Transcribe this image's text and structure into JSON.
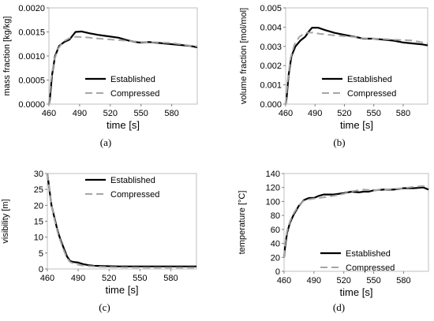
{
  "chart_data": [
    {
      "id": "a",
      "type": "line",
      "panel_label": "(a)",
      "xlabel": "time [s]",
      "ylabel": "mass fraction [kg/kg]",
      "xlim": [
        460,
        605
      ],
      "ylim": [
        0,
        0.002
      ],
      "xticks": [
        "460",
        "490",
        "520",
        "550",
        "580"
      ],
      "yticks": [
        "0.0000",
        "0.0005",
        "0.0010",
        "0.0015",
        "0.0020"
      ],
      "legend_position": "bottom-right",
      "series": [
        {
          "name": "Established",
          "color": "#000000",
          "dash": "solid",
          "points": [
            [
              460,
              0
            ],
            [
              461,
              0.00012
            ],
            [
              463,
              0.0006
            ],
            [
              466,
              0.001
            ],
            [
              470,
              0.00121
            ],
            [
              475,
              0.00129
            ],
            [
              480,
              0.00134
            ],
            [
              483,
              0.00142
            ],
            [
              486,
              0.0015
            ],
            [
              492,
              0.00151
            ],
            [
              500,
              0.00147
            ],
            [
              508,
              0.00144
            ],
            [
              518,
              0.00141
            ],
            [
              528,
              0.00138
            ],
            [
              538,
              0.00132
            ],
            [
              548,
              0.00128
            ],
            [
              558,
              0.00129
            ],
            [
              568,
              0.00127
            ],
            [
              578,
              0.00125
            ],
            [
              588,
              0.00123
            ],
            [
              598,
              0.00121
            ],
            [
              605,
              0.00118
            ]
          ]
        },
        {
          "name": "Compressed",
          "color": "#a6a6a6",
          "dash": "dashed",
          "points": [
            [
              460,
              0
            ],
            [
              462,
              0.0005
            ],
            [
              465,
              0.0009
            ],
            [
              469,
              0.00115
            ],
            [
              474,
              0.0013
            ],
            [
              480,
              0.00137
            ],
            [
              486,
              0.0014
            ],
            [
              495,
              0.00139
            ],
            [
              505,
              0.00137
            ],
            [
              515,
              0.00135
            ],
            [
              528,
              0.00133
            ],
            [
              540,
              0.00131
            ],
            [
              550,
              0.00129
            ],
            [
              560,
              0.00129
            ],
            [
              570,
              0.00128
            ],
            [
              580,
              0.00127
            ],
            [
              590,
              0.00124
            ],
            [
              600,
              0.00121
            ],
            [
              605,
              0.0012
            ]
          ]
        }
      ]
    },
    {
      "id": "b",
      "type": "line",
      "panel_label": "(b)",
      "xlabel": "time [s]",
      "ylabel": "volume fraction [mol/mol]",
      "xlim": [
        460,
        605
      ],
      "ylim": [
        0,
        0.005
      ],
      "xticks": [
        "460",
        "490",
        "520",
        "550",
        "580"
      ],
      "yticks": [
        "0.000",
        "0.001",
        "0.002",
        "0.003",
        "0.004",
        "0.005"
      ],
      "legend_position": "bottom-right",
      "series": [
        {
          "name": "Established",
          "color": "#000000",
          "dash": "solid",
          "points": [
            [
              460,
              0
            ],
            [
              461,
              0.0003
            ],
            [
              463,
              0.0015
            ],
            [
              466,
              0.0025
            ],
            [
              470,
              0.003
            ],
            [
              475,
              0.0033
            ],
            [
              480,
              0.0035
            ],
            [
              484,
              0.0038
            ],
            [
              487,
              0.00397
            ],
            [
              493,
              0.00397
            ],
            [
              500,
              0.00385
            ],
            [
              510,
              0.0037
            ],
            [
              520,
              0.0036
            ],
            [
              530,
              0.0035
            ],
            [
              540,
              0.0034
            ],
            [
              550,
              0.0034
            ],
            [
              560,
              0.00335
            ],
            [
              570,
              0.0033
            ],
            [
              580,
              0.0032
            ],
            [
              590,
              0.00315
            ],
            [
              600,
              0.0031
            ],
            [
              605,
              0.00305
            ]
          ]
        },
        {
          "name": "Compressed",
          "color": "#a6a6a6",
          "dash": "dashed",
          "points": [
            [
              460,
              0
            ],
            [
              462,
              0.0012
            ],
            [
              465,
              0.0024
            ],
            [
              469,
              0.0031
            ],
            [
              474,
              0.0035
            ],
            [
              480,
              0.0037
            ],
            [
              487,
              0.00372
            ],
            [
              495,
              0.00365
            ],
            [
              505,
              0.0036
            ],
            [
              515,
              0.00355
            ],
            [
              528,
              0.0035
            ],
            [
              540,
              0.00342
            ],
            [
              550,
              0.0034
            ],
            [
              560,
              0.00338
            ],
            [
              570,
              0.00335
            ],
            [
              580,
              0.00333
            ],
            [
              590,
              0.0033
            ],
            [
              600,
              0.0032
            ],
            [
              605,
              0.00315
            ]
          ]
        }
      ]
    },
    {
      "id": "c",
      "type": "line",
      "panel_label": "(c)",
      "xlabel": "time [s]",
      "ylabel": "visibility [m]",
      "xlim": [
        460,
        605
      ],
      "ylim": [
        0,
        30
      ],
      "xticks": [
        "460",
        "490",
        "520",
        "550",
        "580"
      ],
      "yticks": [
        "0",
        "5",
        "10",
        "15",
        "20",
        "25",
        "30"
      ],
      "legend_position": "top-right",
      "series": [
        {
          "name": "Established",
          "color": "#000000",
          "dash": "solid",
          "points": [
            [
              460,
              30
            ],
            [
              462,
              25
            ],
            [
              464,
              20
            ],
            [
              467,
              16
            ],
            [
              470,
              12
            ],
            [
              473,
              9
            ],
            [
              476,
              6.5
            ],
            [
              479,
              4
            ],
            [
              482,
              2.5
            ],
            [
              485,
              2.2
            ],
            [
              490,
              2
            ],
            [
              495,
              1.5
            ],
            [
              500,
              1.2
            ],
            [
              505,
              1
            ],
            [
              515,
              0.9
            ],
            [
              530,
              0.8
            ],
            [
              560,
              0.8
            ],
            [
              590,
              0.8
            ],
            [
              605,
              0.8
            ]
          ]
        },
        {
          "name": "Compressed",
          "color": "#a6a6a6",
          "dash": "dashed",
          "points": [
            [
              460,
              30
            ],
            [
              462,
              25
            ],
            [
              464,
              20
            ],
            [
              467,
              15.5
            ],
            [
              470,
              11.5
            ],
            [
              473,
              8.5
            ],
            [
              476,
              5.8
            ],
            [
              479,
              3.5
            ],
            [
              482,
              2.2
            ],
            [
              486,
              1.6
            ],
            [
              492,
              1.2
            ],
            [
              500,
              0.9
            ],
            [
              510,
              0.7
            ],
            [
              530,
              0.5
            ],
            [
              560,
              0.4
            ],
            [
              590,
              0.4
            ],
            [
              605,
              0.4
            ]
          ]
        }
      ]
    },
    {
      "id": "d",
      "type": "line",
      "panel_label": "(d)",
      "xlabel": "time [s]",
      "ylabel": "temperature [°C]",
      "xlim": [
        460,
        605
      ],
      "ylim": [
        0,
        140
      ],
      "xticks": [
        "460",
        "490",
        "520",
        "550",
        "580"
      ],
      "yticks": [
        "0",
        "20",
        "40",
        "60",
        "80",
        "100",
        "120",
        "140"
      ],
      "legend_position": "bottom-right",
      "series": [
        {
          "name": "Established",
          "color": "#000000",
          "dash": "solid",
          "points": [
            [
              460,
              20
            ],
            [
              461,
              35
            ],
            [
              463,
              55
            ],
            [
              466,
              70
            ],
            [
              470,
              82
            ],
            [
              475,
              94
            ],
            [
              480,
              102
            ],
            [
              485,
              105
            ],
            [
              490,
              105
            ],
            [
              495,
              108
            ],
            [
              500,
              110
            ],
            [
              510,
              110
            ],
            [
              520,
              112
            ],
            [
              528,
              114
            ],
            [
              535,
              113
            ],
            [
              540,
              114
            ],
            [
              545,
              114
            ],
            [
              550,
              116
            ],
            [
              560,
              117
            ],
            [
              570,
              117
            ],
            [
              580,
              119
            ],
            [
              590,
              119
            ],
            [
              600,
              120
            ],
            [
              605,
              117
            ]
          ]
        },
        {
          "name": "Compressed",
          "color": "#a6a6a6",
          "dash": "dashed",
          "points": [
            [
              460,
              20
            ],
            [
              461,
              40
            ],
            [
              463,
              58
            ],
            [
              466,
              72
            ],
            [
              470,
              84
            ],
            [
              475,
              95
            ],
            [
              480,
              101
            ],
            [
              485,
              103
            ],
            [
              490,
              104
            ],
            [
              500,
              106
            ],
            [
              510,
              108
            ],
            [
              520,
              111
            ],
            [
              530,
              115
            ],
            [
              540,
              117
            ],
            [
              550,
              116
            ],
            [
              560,
              117
            ],
            [
              570,
              118
            ],
            [
              580,
              119
            ],
            [
              590,
              121
            ],
            [
              600,
              122
            ],
            [
              605,
              120
            ]
          ]
        }
      ]
    }
  ]
}
